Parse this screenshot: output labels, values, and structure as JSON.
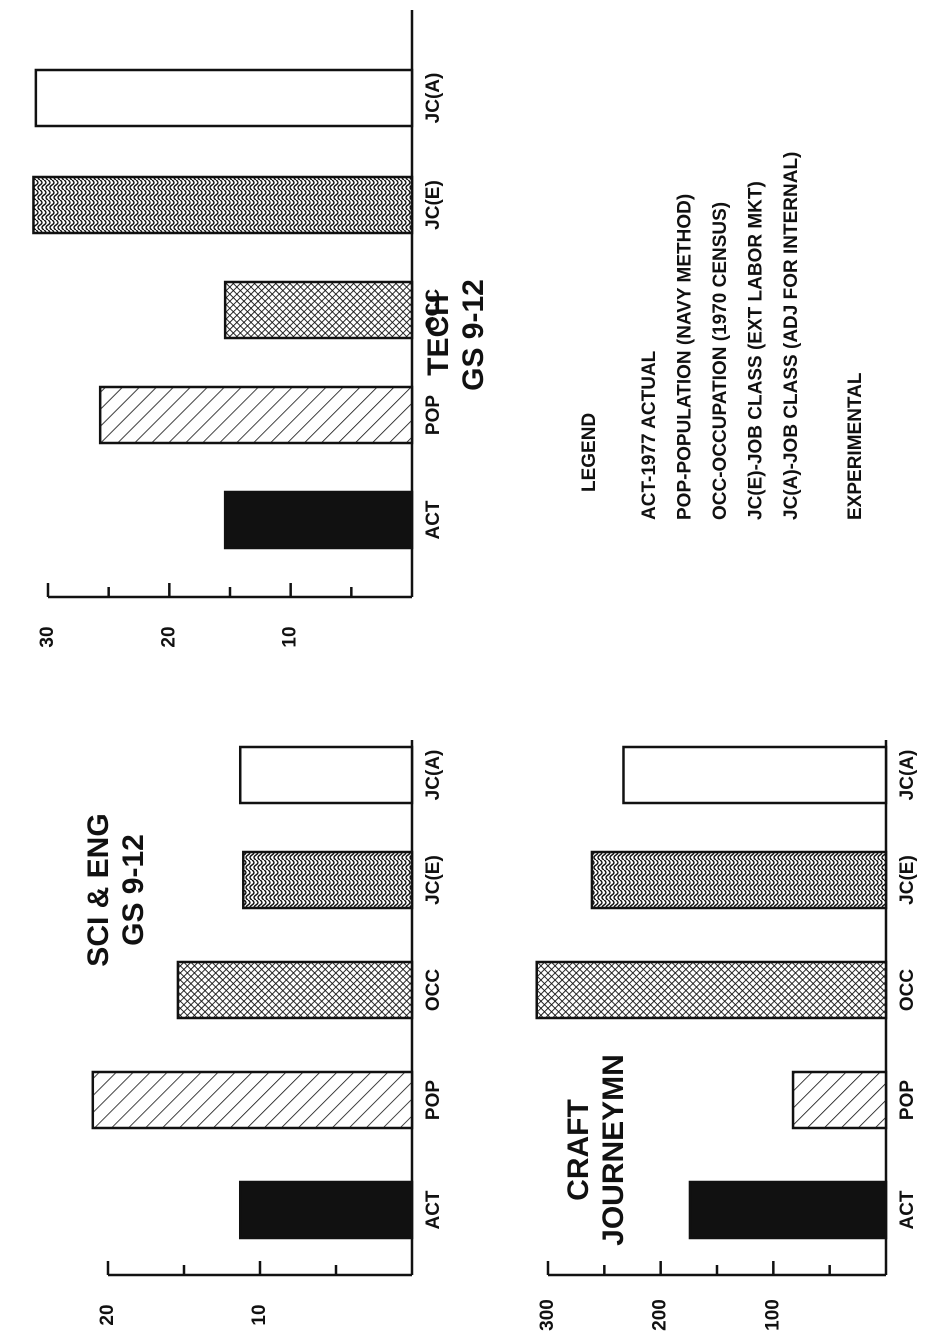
{
  "chart_data": [
    {
      "type": "bar",
      "title": "SCI & ENG",
      "subtitle": "GS 9-12",
      "categories": [
        "ACT",
        "POP",
        "OCC",
        "JC(E)",
        "JC(A)"
      ],
      "values": [
        11.3,
        21,
        15.4,
        11.1,
        11.3
      ],
      "bar_styles": [
        "solid",
        "hatch",
        "crosshatch",
        "wave",
        "open"
      ],
      "ylim": [
        0,
        20
      ],
      "yticks": [
        10,
        20
      ],
      "minor_yticks": [
        5,
        15
      ]
    },
    {
      "type": "bar",
      "title": "TECH",
      "subtitle": "GS 9-12",
      "categories": [
        "ACT",
        "POP",
        "OCC",
        "JC(E)",
        "JC(A)"
      ],
      "values": [
        15.4,
        25.7,
        15.4,
        31.2,
        31
      ],
      "bar_styles": [
        "solid",
        "hatch",
        "crosshatch",
        "wave",
        "open"
      ],
      "ylim": [
        0,
        30
      ],
      "yticks": [
        10,
        20,
        30
      ],
      "minor_yticks": [
        5,
        15,
        25
      ]
    },
    {
      "type": "bar",
      "title": "CRAFT",
      "subtitle": "JOURNEYMN",
      "categories": [
        "ACT",
        "POP",
        "OCC",
        "JC(E)",
        "JC(A)"
      ],
      "values": [
        174,
        82.5,
        310,
        261,
        233
      ],
      "bar_styles": [
        "solid",
        "hatch",
        "crosshatch",
        "wave",
        "open"
      ],
      "ylim": [
        0,
        300
      ],
      "yticks": [
        100,
        200,
        300
      ],
      "minor_yticks": [
        50,
        150,
        250
      ]
    }
  ],
  "legend": {
    "title": "LEGEND",
    "items": [
      "ACT-1977 ACTUAL",
      "POP-POPULATION (NAVY METHOD)",
      "OCC-OCCUPATION (1970 CENSUS)",
      "JC(E)-JOB CLASS (EXT LABOR MKT)",
      "JC(A)-JOB CLASS (ADJ FOR INTERNAL)"
    ],
    "note": "EXPERIMENTAL"
  }
}
